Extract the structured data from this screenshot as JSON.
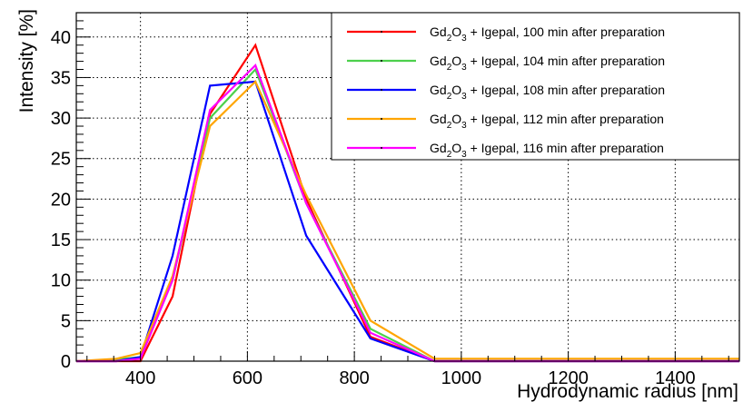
{
  "chart_data": {
    "type": "line",
    "title": "",
    "xlabel": "Hydrodynamic radius [nm]",
    "ylabel": "Intensity [%]",
    "xlim": [
      280,
      1520
    ],
    "ylim": [
      0,
      43
    ],
    "xticks": [
      400,
      600,
      800,
      1000,
      1200,
      1400
    ],
    "xtick_labels": [
      "400",
      "600",
      "800",
      "1000",
      "1200",
      "1400"
    ],
    "yticks": [
      0,
      5,
      10,
      15,
      20,
      25,
      30,
      35,
      40
    ],
    "ytick_labels": [
      "0",
      "5",
      "10",
      "15",
      "20",
      "25",
      "30",
      "35",
      "40"
    ],
    "grid": true,
    "legend_position": "top-right",
    "series": [
      {
        "name": "Gd2O3 + Igepal, 100 min after preparation",
        "color": "#ff0000",
        "x": [
          280,
          355,
          400,
          460,
          530,
          615,
          710,
          830,
          950,
          1520
        ],
        "y": [
          0,
          0,
          0,
          8,
          30.5,
          39,
          20,
          3,
          0,
          0
        ]
      },
      {
        "name": "Gd2O3 + Igepal, 104 min after preparation",
        "color": "#4cd04c",
        "x": [
          280,
          355,
          400,
          460,
          530,
          615,
          710,
          830,
          950,
          1520
        ],
        "y": [
          0,
          0.2,
          0.5,
          10,
          30,
          36,
          19.5,
          4,
          0,
          0
        ]
      },
      {
        "name": "Gd2O3 + Igepal, 108 min after preparation",
        "color": "#0000ff",
        "x": [
          280,
          355,
          400,
          460,
          530,
          615,
          710,
          830,
          950,
          1520
        ],
        "y": [
          0,
          0,
          0.5,
          13,
          34,
          34.5,
          15.5,
          2.8,
          0,
          0
        ]
      },
      {
        "name": "Gd2O3 + Igepal, 112 min after preparation",
        "color": "#ffa500",
        "x": [
          280,
          355,
          400,
          460,
          530,
          615,
          710,
          830,
          950,
          1520
        ],
        "y": [
          0,
          0.3,
          1,
          10.5,
          29,
          34.5,
          20.5,
          5,
          0.3,
          0.3
        ]
      },
      {
        "name": "Gd2O3 + Igepal, 116 min after preparation",
        "color": "#ff00ff",
        "x": [
          280,
          355,
          400,
          460,
          530,
          615,
          710,
          830,
          950,
          1520
        ],
        "y": [
          0,
          0,
          0.3,
          10,
          31,
          36.5,
          19.5,
          3.5,
          0,
          0
        ]
      }
    ]
  },
  "legend": {
    "entries": [
      {
        "compound_base": "Gd",
        "sub1": "2",
        "mid": "O",
        "sub2": "3",
        "suffix": " + Igepal, 100 min after preparation",
        "color": "#ff0000"
      },
      {
        "compound_base": "Gd",
        "sub1": "2",
        "mid": "O",
        "sub2": "3",
        "suffix": " + Igepal, 104 min after preparation",
        "color": "#4cd04c"
      },
      {
        "compound_base": "Gd",
        "sub1": "2",
        "mid": "O",
        "sub2": "3",
        "suffix": " + Igepal, 108 min after preparation",
        "color": "#0000ff"
      },
      {
        "compound_base": "Gd",
        "sub1": "2",
        "mid": "O",
        "sub2": "3",
        "suffix": " + Igepal, 112 min after preparation",
        "color": "#ffa500"
      },
      {
        "compound_base": "Gd",
        "sub1": "2",
        "mid": "O",
        "sub2": "3",
        "suffix": " + Igepal, 116 min after preparation",
        "color": "#ff00ff"
      }
    ]
  }
}
